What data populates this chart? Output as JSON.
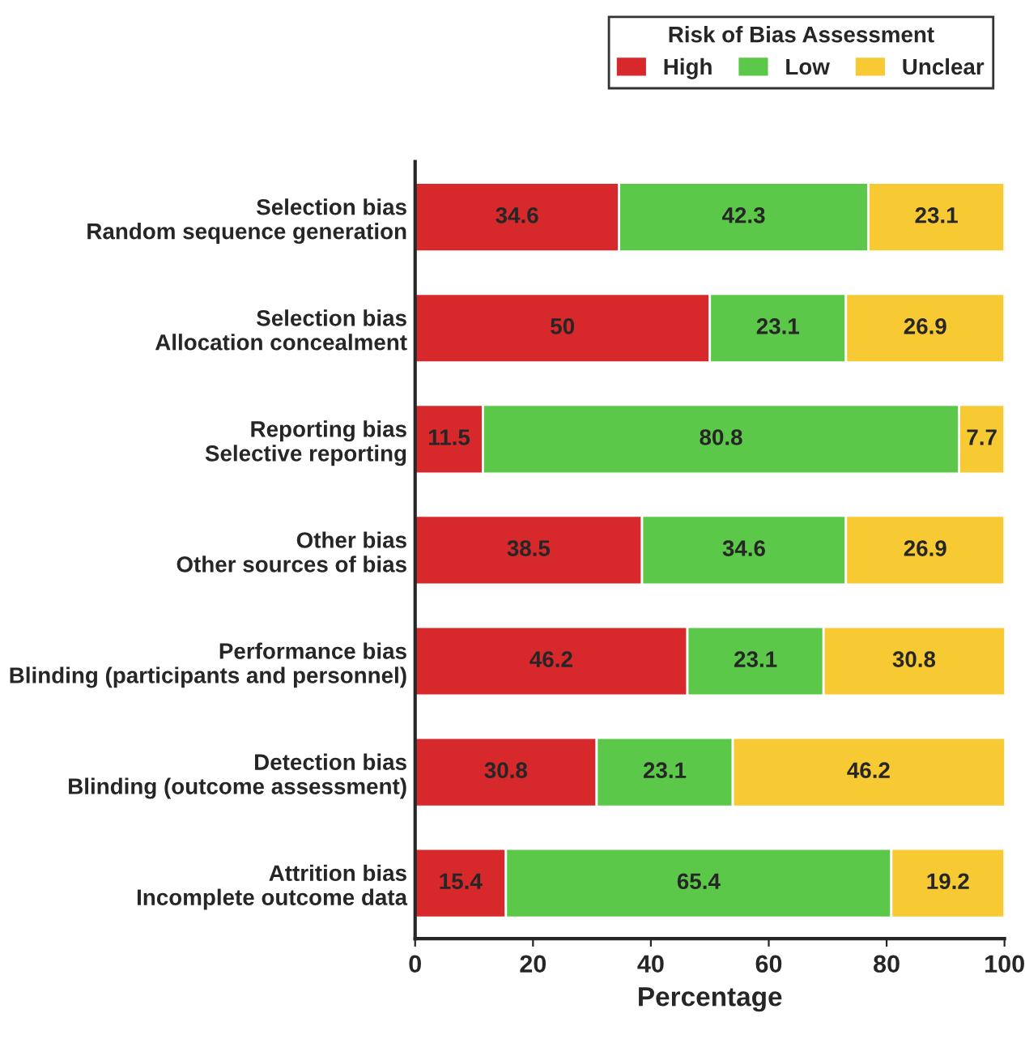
{
  "chart_data": {
    "type": "bar",
    "orientation": "horizontal",
    "stacked": true,
    "categories": [
      "Selection bias\nRandom sequence generation",
      "Selection bias\nAllocation concealment",
      "Reporting bias\nSelective reporting",
      "Other bias\nOther sources of bias",
      "Performance bias\nBlinding (participants and personnel)",
      "Detection bias\nBlinding (outcome assessment)",
      "Attrition bias\nIncomplete outcome data"
    ],
    "series": [
      {
        "name": "High",
        "color": "#d7282b",
        "values": [
          34.6,
          50,
          11.5,
          38.5,
          46.2,
          30.8,
          15.4
        ]
      },
      {
        "name": "Low",
        "color": "#5cc84a",
        "values": [
          42.3,
          23.1,
          80.8,
          34.6,
          23.1,
          23.1,
          65.4
        ]
      },
      {
        "name": "Unclear",
        "color": "#f7c932",
        "values": [
          23.1,
          26.9,
          7.7,
          26.9,
          30.8,
          46.2,
          19.2
        ]
      }
    ],
    "xlabel": "Percentage",
    "legend_title": "Risk of Bias Assessment",
    "legend": "top right",
    "xlim": [
      0,
      100
    ],
    "xticks": [
      0,
      20,
      40,
      60,
      80,
      100
    ],
    "data_labels": true,
    "grid": false
  }
}
